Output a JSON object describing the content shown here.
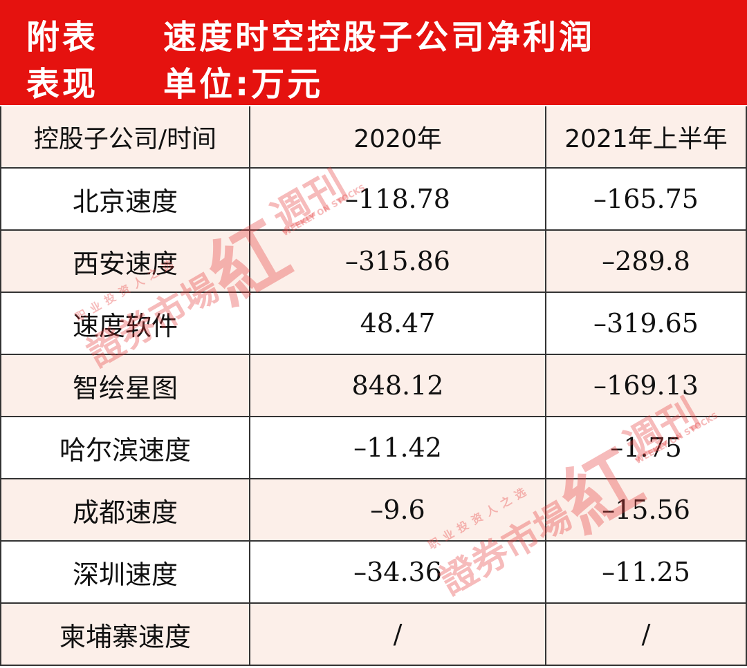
{
  "header": {
    "label1": "附表",
    "title1": "速度时空控股子公司净利润",
    "label2": "表现",
    "title2": "单位:万元"
  },
  "table": {
    "columns": [
      "控股子公司/时间",
      "2020年",
      "2021年上半年"
    ],
    "rows": [
      [
        "北京速度",
        "–118.78",
        "–165.75"
      ],
      [
        "西安速度",
        "–315.86",
        "–289.8"
      ],
      [
        "速度软件",
        "48.47",
        "–319.65"
      ],
      [
        "智绘星图",
        "848.12",
        "–169.13"
      ],
      [
        "哈尔滨速度",
        "–11.42",
        "–1.75"
      ],
      [
        "成都速度",
        "–9.6",
        "–15.56"
      ],
      [
        "深圳速度",
        "–34.36",
        "–11.25"
      ],
      [
        "柬埔寨速度",
        "/",
        "/"
      ]
    ]
  },
  "watermarks": [
    {
      "brand": "證券市場",
      "mark": "紅",
      "name": "週刊",
      "english": "WEEKLY ON STOCKS",
      "slogan": "职业投资人之选"
    },
    {
      "brand": "證券市場",
      "mark": "紅",
      "name": "週刊",
      "english": "WEEKLY ON STOCKS",
      "slogan": "职业投资人之选"
    }
  ]
}
